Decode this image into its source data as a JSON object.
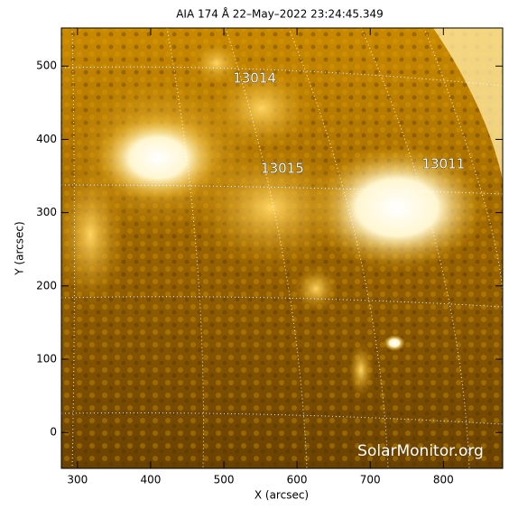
{
  "chart_data": {
    "type": "image",
    "title": "AIA 174 Å 22–May–2022 23:24:45.349",
    "x_label": "X (arcsec)",
    "y_label": "Y (arcsec)",
    "xlim": [
      278,
      881
    ],
    "ylim": [
      -49,
      552
    ],
    "xticks": [
      300,
      400,
      500,
      600,
      700,
      800
    ],
    "yticks": [
      0,
      100,
      200,
      300,
      400,
      500
    ],
    "annotations": [
      {
        "text": "13014",
        "x": 542,
        "y": 483
      },
      {
        "text": "13015",
        "x": 580,
        "y": 360
      },
      {
        "text": "13011",
        "x": 800,
        "y": 366
      }
    ],
    "watermark": "SolarMonitor.org"
  }
}
